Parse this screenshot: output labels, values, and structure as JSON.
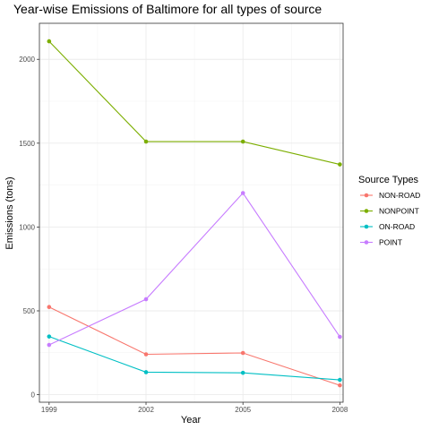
{
  "chart_data": {
    "type": "line",
    "title": "Year-wise Emissions of Baltimore for all types of source",
    "xlabel": "Year",
    "ylabel": "Emissions  (tons)",
    "x": [
      1999,
      2002,
      2005,
      2008
    ],
    "xlim": [
      1998.7,
      2008.1
    ],
    "ylim": [
      -45,
      2215
    ],
    "yticks": [
      0,
      500,
      1000,
      1500,
      2000
    ],
    "grid": true,
    "legend": {
      "title": "Source Types",
      "position": "right"
    },
    "series": [
      {
        "name": "NON-ROAD",
        "color": "#F8766D",
        "values": [
          522.9,
          240.8,
          248.9,
          55.8
        ]
      },
      {
        "name": "NONPOINT",
        "color": "#7CAE00",
        "values": [
          2107.6,
          1509.5,
          1509.5,
          1373.2
        ]
      },
      {
        "name": "ON-ROAD",
        "color": "#00BFC4",
        "values": [
          346.8,
          134.3,
          130.4,
          88.3
        ]
      },
      {
        "name": "POINT",
        "color": "#C77CFF",
        "values": [
          296.8,
          569.3,
          1202.5,
          344.98
        ]
      }
    ]
  }
}
